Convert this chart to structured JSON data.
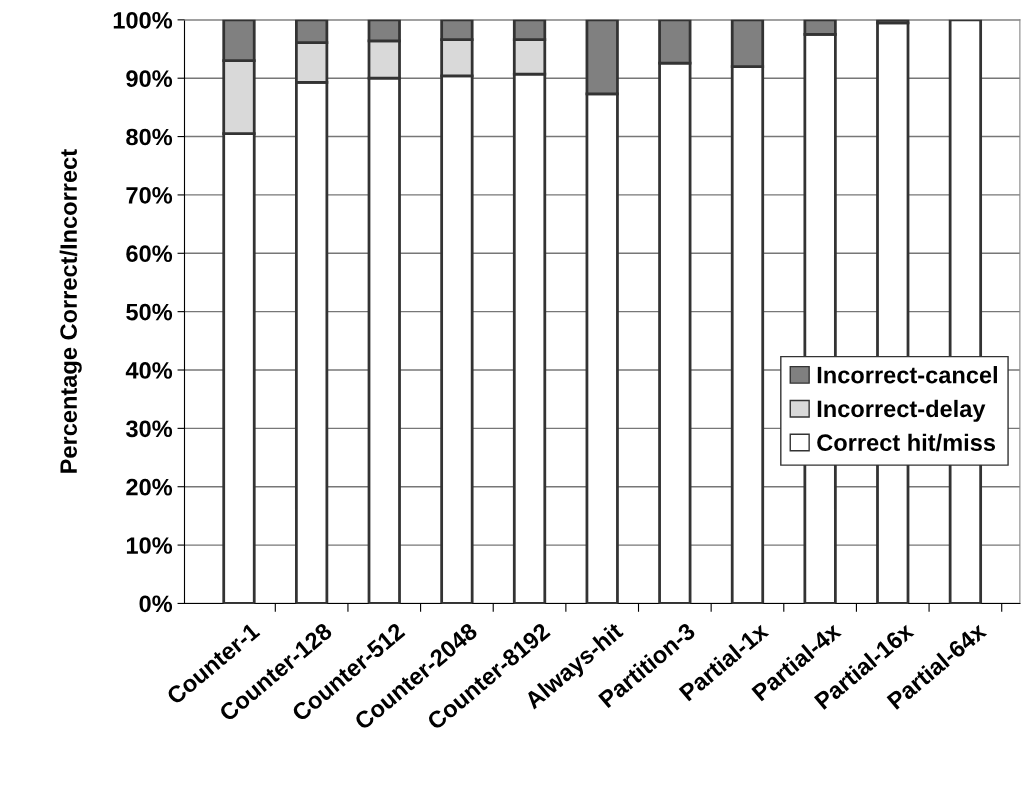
{
  "chart_data": {
    "type": "bar",
    "stacked": true,
    "ylabel": "Percentage Correct/Incorrect",
    "categories": [
      "Counter-1",
      "Counter-128",
      "Counter-512",
      "Counter-2048",
      "Counter-8192",
      "Always-hit",
      "Partition-3",
      "Partial-1x",
      "Partial-4x",
      "Partial-16x",
      "Partial-64x"
    ],
    "series": [
      {
        "name": "Correct hit/miss",
        "color": "#ffffff",
        "values": [
          80.5,
          89.3,
          90.0,
          90.4,
          90.7,
          87.3,
          92.6,
          92.0,
          97.5,
          99.5,
          100
        ]
      },
      {
        "name": "Incorrect-delay",
        "color": "#d9d9d9",
        "values": [
          12.5,
          6.8,
          6.4,
          6.2,
          5.9,
          null,
          null,
          null,
          null,
          null,
          null
        ]
      },
      {
        "name": "Incorrect-cancel",
        "color": "#808080",
        "values": [
          7.0,
          3.9,
          3.6,
          3.4,
          3.4,
          12.7,
          7.4,
          8.0,
          2.5,
          0.5,
          null
        ]
      }
    ],
    "ylim": [
      0,
      100
    ],
    "yticks": [
      {
        "value": 0,
        "label": "0%"
      },
      {
        "value": 10,
        "label": "10%"
      },
      {
        "value": 20,
        "label": "20%"
      },
      {
        "value": 30,
        "label": "30%"
      },
      {
        "value": 40,
        "label": "40%"
      },
      {
        "value": 50,
        "label": "50%"
      },
      {
        "value": 60,
        "label": "60%"
      },
      {
        "value": 70,
        "label": "70%"
      },
      {
        "value": 80,
        "label": "80%"
      },
      {
        "value": 90,
        "label": "90%"
      },
      {
        "value": 100,
        "label": "100%"
      }
    ],
    "grid": "y",
    "legend": "right"
  }
}
